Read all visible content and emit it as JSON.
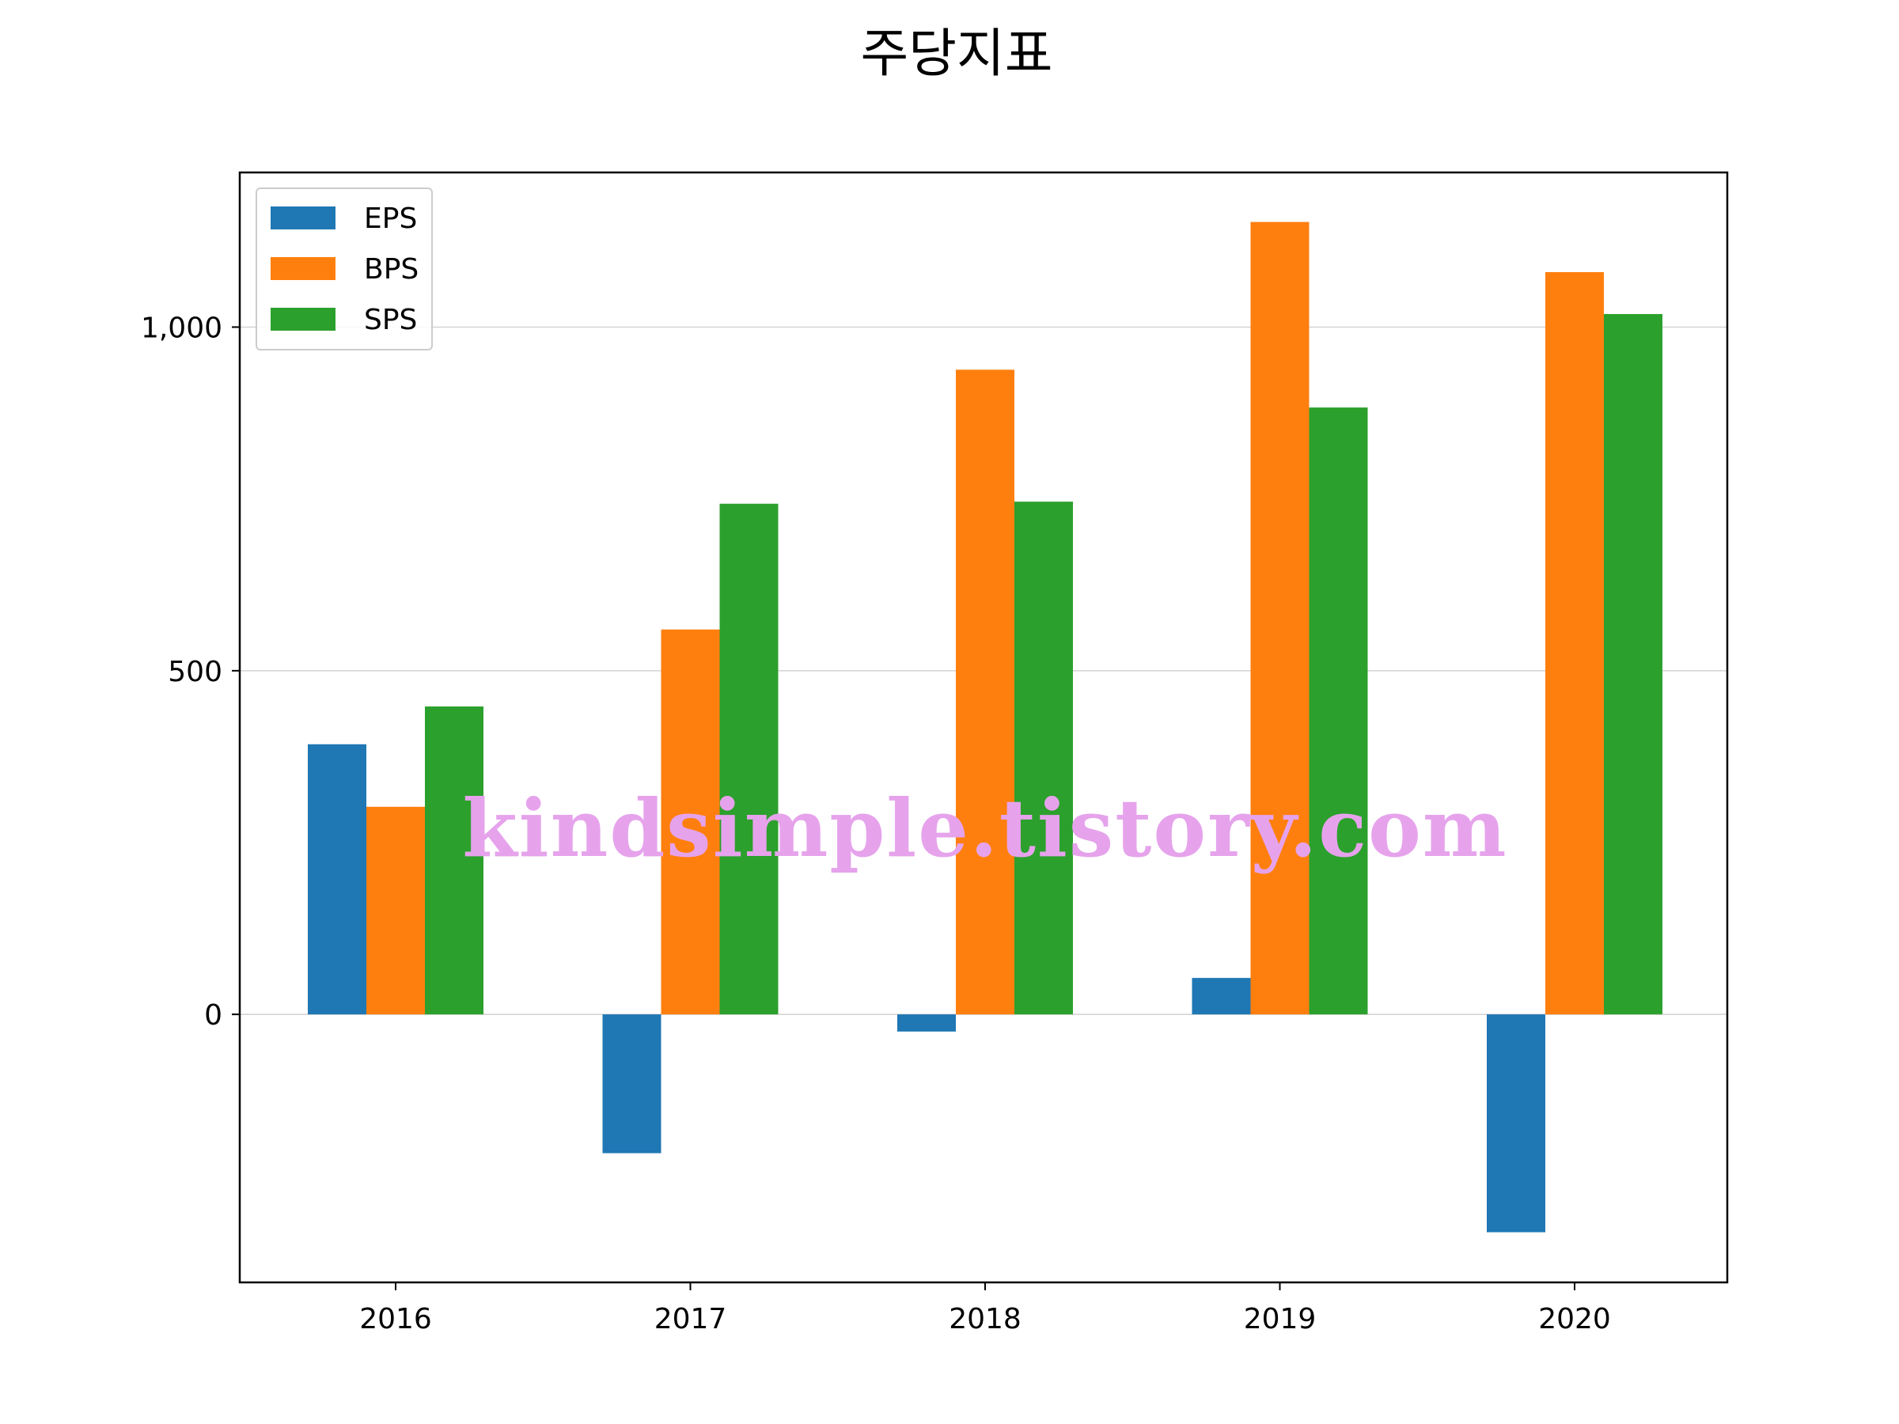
{
  "chart_data": {
    "type": "bar",
    "title": "주당지표",
    "xlabel": "",
    "ylabel": "",
    "categories": [
      "2016",
      "2017",
      "2018",
      "2019",
      "2020"
    ],
    "series": [
      {
        "name": "EPS",
        "color": "#1f77b4",
        "values": [
          393,
          -202,
          -25,
          53,
          -317
        ]
      },
      {
        "name": "BPS",
        "color": "#ff7f0e",
        "values": [
          302,
          560,
          938,
          1153,
          1080
        ]
      },
      {
        "name": "SPS",
        "color": "#2ca02c",
        "values": [
          448,
          743,
          746,
          883,
          1019
        ]
      }
    ],
    "ylim": [
      -390,
      1225
    ],
    "yticks": [
      0,
      500,
      1000
    ],
    "ytick_labels": [
      "0",
      "500",
      "1,000"
    ],
    "grid": "y",
    "legend_position": "upper-left",
    "watermark": "kindsimple.tistory.com"
  }
}
